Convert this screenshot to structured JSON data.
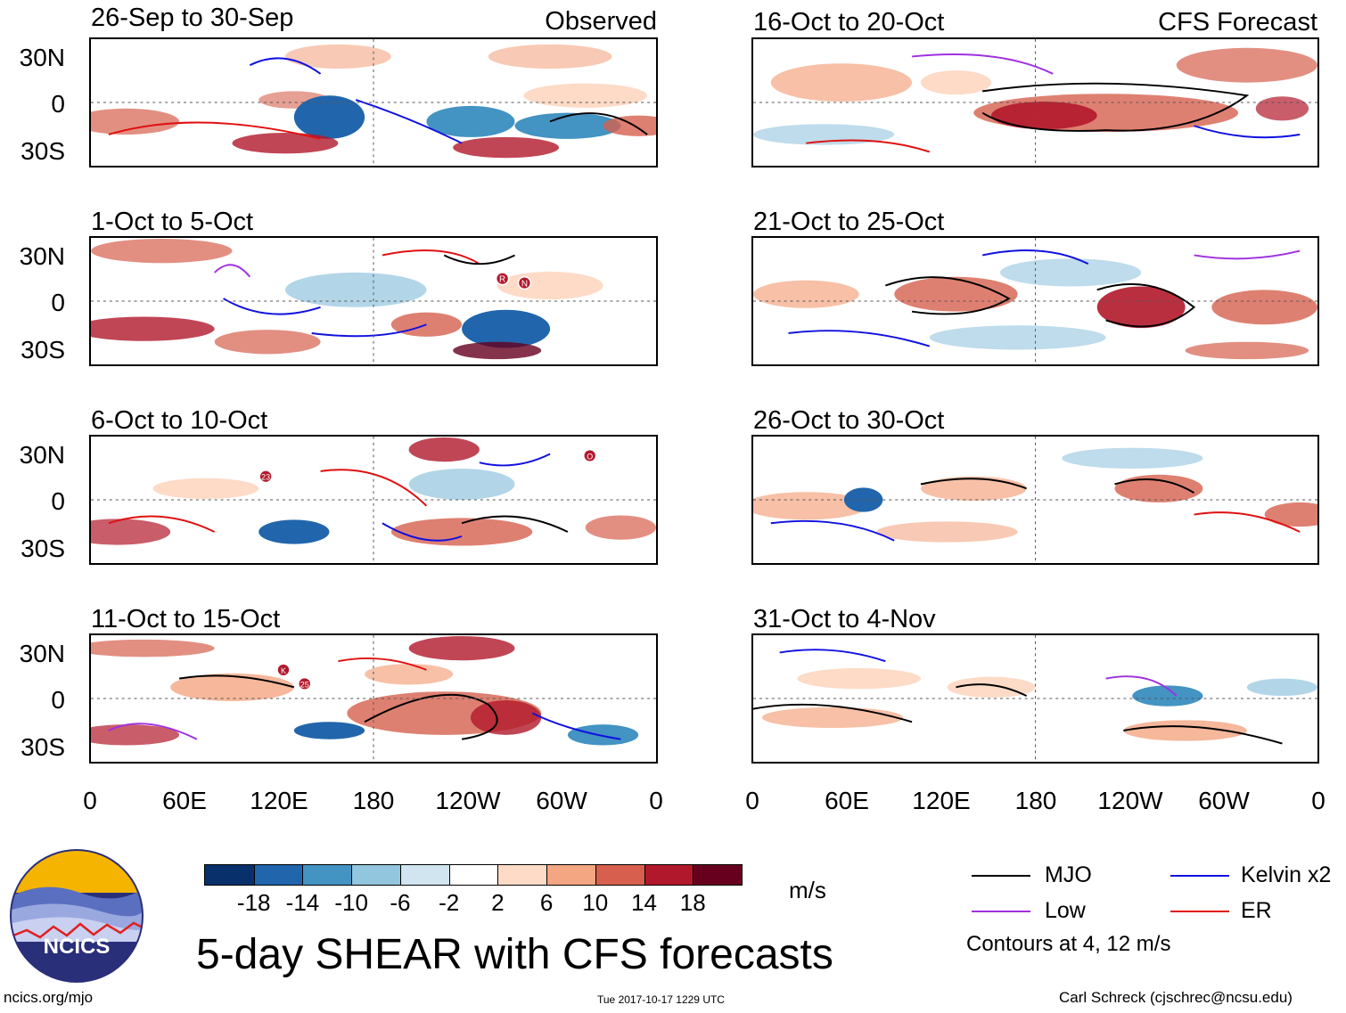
{
  "panels": {
    "left": [
      {
        "title": "26-Sep to 30-Sep",
        "tag": "Observed"
      },
      {
        "title": "1-Oct to 5-Oct",
        "tag": ""
      },
      {
        "title": "6-Oct to 10-Oct",
        "tag": ""
      },
      {
        "title": "11-Oct to 15-Oct",
        "tag": ""
      }
    ],
    "right": [
      {
        "title": "16-Oct to 20-Oct",
        "tag": "CFS Forecast"
      },
      {
        "title": "21-Oct to 25-Oct",
        "tag": ""
      },
      {
        "title": "26-Oct to 30-Oct",
        "tag": ""
      },
      {
        "title": "31-Oct to 4-Nov",
        "tag": ""
      }
    ]
  },
  "lat_labels": [
    "30N",
    "0",
    "30S"
  ],
  "lon_labels": [
    "0",
    "60E",
    "120E",
    "180",
    "120W",
    "60W",
    "0"
  ],
  "storm_markers": [
    {
      "panel": "left-1",
      "label": "R"
    },
    {
      "panel": "left-1",
      "label": "N"
    },
    {
      "panel": "left-2",
      "label": "23"
    },
    {
      "panel": "left-2",
      "label": "O"
    },
    {
      "panel": "left-3",
      "label": "K"
    },
    {
      "panel": "left-3",
      "label": "25"
    }
  ],
  "colorbar": {
    "colors": [
      "#08306b",
      "#2166ac",
      "#4393c3",
      "#92c5de",
      "#d1e5f0",
      "#ffffff",
      "#fddbc7",
      "#f4a582",
      "#d6604d",
      "#b2182b",
      "#67001f"
    ],
    "ticks": [
      "-18",
      "-14",
      "-10",
      "-6",
      "-2",
      "2",
      "6",
      "10",
      "14",
      "18"
    ],
    "units": "m/s"
  },
  "legend": {
    "items": [
      {
        "label": "MJO",
        "color": "#000000"
      },
      {
        "label": "Kelvin x2",
        "color": "#1010e0"
      },
      {
        "label": "Low",
        "color": "#a030e0"
      },
      {
        "label": "ER",
        "color": "#e01010"
      }
    ],
    "note": "Contours at 4, 12 m/s"
  },
  "logo_text": "NCICS",
  "main_title": "5-day SHEAR with CFS forecasts",
  "footer": {
    "left": "ncics.org/mjo",
    "center": "Tue 2017-10-17 1229 UTC",
    "right": "Carl Schreck (cjschrec@ncsu.edu)"
  }
}
